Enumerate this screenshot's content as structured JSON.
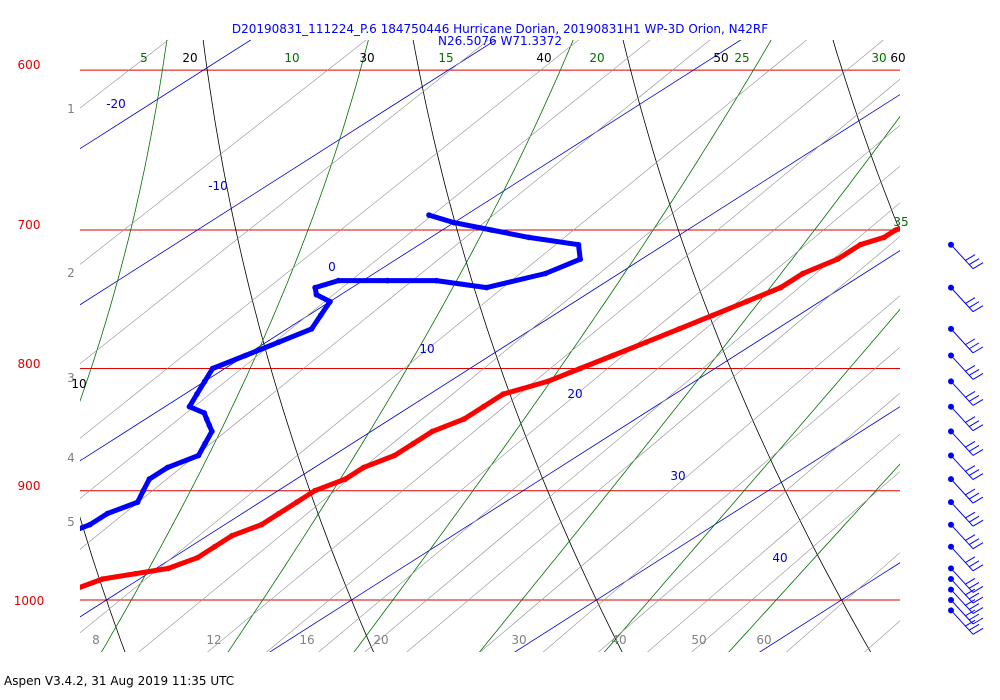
{
  "chart_data": {
    "type": "line",
    "title_line1": "D20190831_111224_P.6 184750446 Hurricane Dorian, 20190831H1 WP-3D Orion, N42RF",
    "title_line2": "N26.5076 W71.3372",
    "footer": "Aspen V3.4.2, 31 Aug 2019  11:35 UTC",
    "pressure_levels": [
      "600",
      "700",
      "800",
      "900",
      "1000"
    ],
    "height_labels": [
      "1",
      "2",
      "3",
      "4",
      "5"
    ],
    "mixing_ratio_labels": [
      "8",
      "12",
      "16",
      "20",
      "30",
      "40",
      "50",
      "60"
    ],
    "isotherm_labels": [
      "-20",
      "-10",
      "0",
      "10",
      "20",
      "30",
      "40"
    ],
    "dry_adiabat_labels": [
      "10",
      "20",
      "30",
      "40",
      "50",
      "60"
    ],
    "moist_adiabat_labels": [
      "5",
      "10",
      "15",
      "20",
      "25",
      "30",
      "35"
    ],
    "colors": {
      "isobar": "#e00000",
      "isotherm": "#0000cc",
      "dry_adiabat": "#000000",
      "moist_adiabat": "#007000",
      "mixing_ratio": "#909090",
      "temperature": "#ff0000",
      "dewpoint": "#0000ff",
      "wind": "#0000ff"
    },
    "series": [
      {
        "x": [
          8.0,
          8.0,
          8.0,
          8.5,
          9.5,
          10.5,
          11.0,
          11.0,
          11.0,
          11.5,
          11.5,
          11.5,
          11.5,
          12.0,
          12.0,
          12.5,
          12.5,
          12.5,
          13.0,
          13.0,
          13.0,
          14.0,
          14.5,
          15.0,
          15.5,
          16.0,
          16.5,
          17.0,
          17.5,
          17.5,
          18.0,
          18.0,
          18.5,
          18.5,
          19.0,
          19.5,
          19.5,
          19.5
        ],
        "y": [
          1010,
          1000,
          990,
          980,
          975,
          970,
          960,
          950,
          940,
          930,
          920,
          910,
          900,
          890,
          880,
          870,
          860,
          850,
          840,
          830,
          820,
          810,
          800,
          790,
          780,
          770,
          760,
          750,
          740,
          730,
          720,
          710,
          705,
          700,
          695,
          690,
          685,
          680
        ]
      },
      {
        "x": [
          0.0,
          0.0,
          0.5,
          1.0,
          2.0,
          3.0,
          3.5,
          4.0,
          4.5,
          4.5,
          5.0,
          4.5,
          4.0,
          4.0,
          4.5,
          4.0,
          3.5,
          3.0,
          2.5,
          2.0,
          1.0,
          0.5,
          0.0,
          -0.5,
          0.0,
          0.5,
          1.0,
          0.5,
          0.0,
          -1.0,
          -1.5,
          -1.0,
          1.0,
          3.0,
          5.5,
          7.0,
          7.5,
          6.5,
          4.0,
          2.0,
          0.0,
          -1.5
        ],
        "y": [
          1010,
          1000,
          990,
          980,
          970,
          960,
          950,
          940,
          930,
          920,
          910,
          900,
          890,
          880,
          870,
          860,
          850,
          845,
          840,
          835,
          830,
          820,
          810,
          800,
          790,
          780,
          770,
          760,
          750,
          745,
          740,
          735,
          735,
          735,
          740,
          730,
          720,
          710,
          705,
          700,
          695,
          690
        ]
      }
    ],
    "wind_levels": [
      1010,
      1000,
      990,
      980,
      970,
      950,
      930,
      910,
      890,
      870,
      850,
      830,
      810,
      790,
      770,
      740,
      710
    ]
  }
}
